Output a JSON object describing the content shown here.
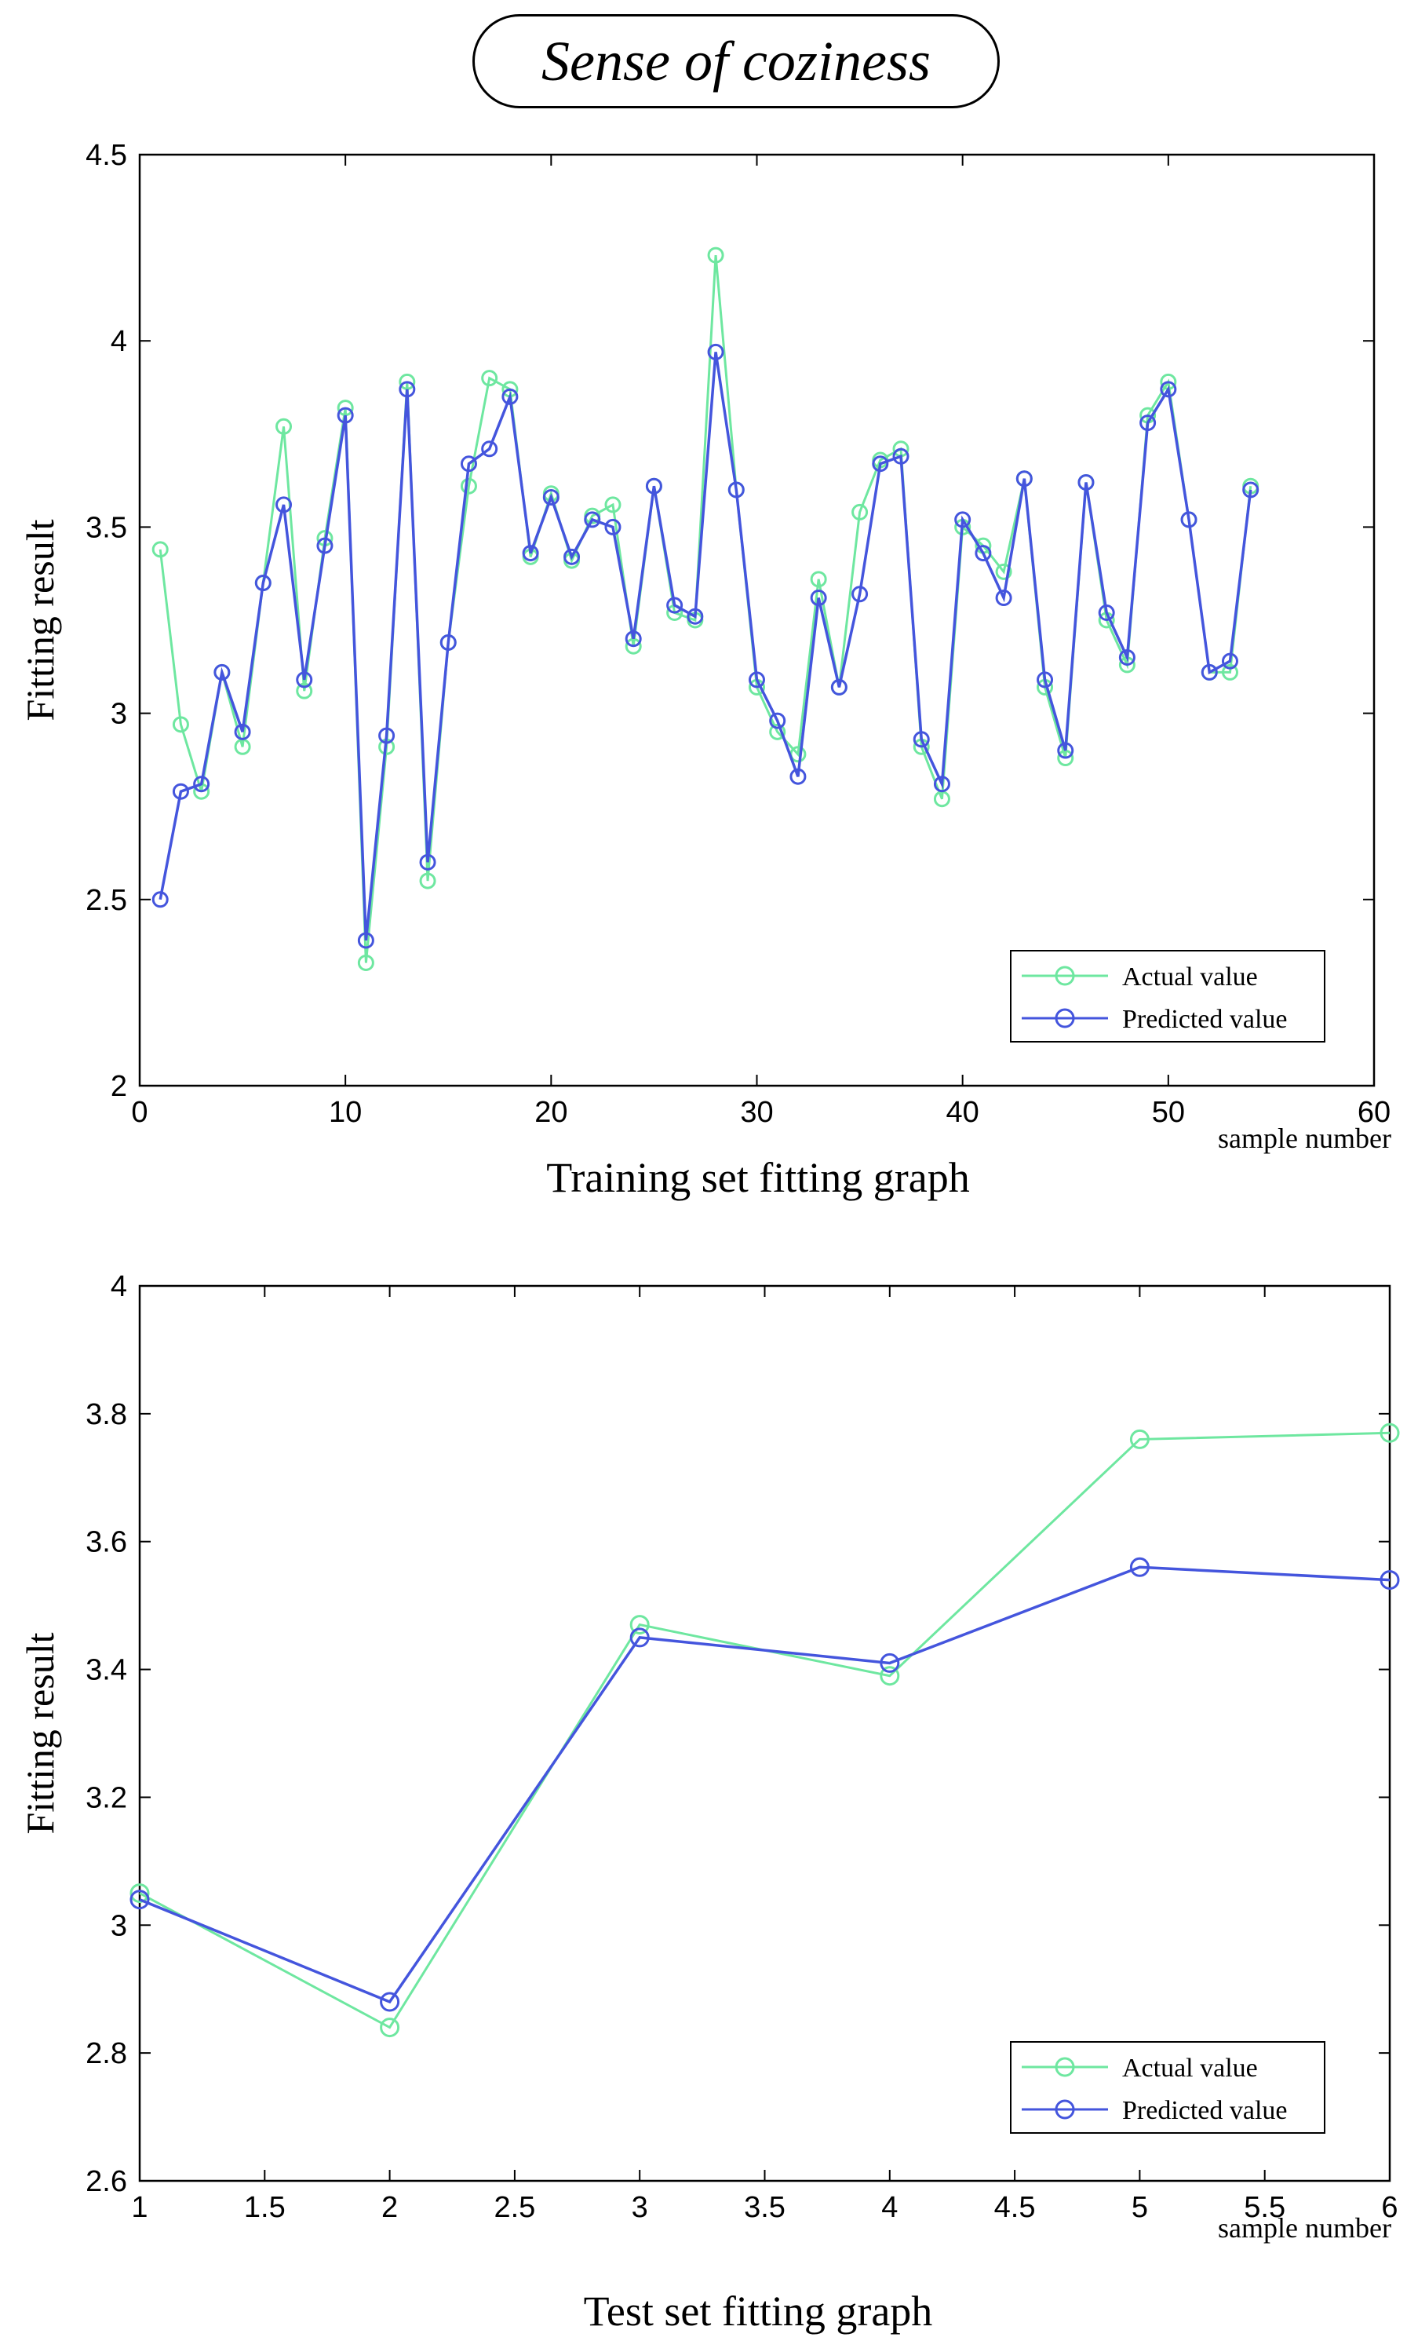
{
  "page_title": "Sense of coziness",
  "colors": {
    "actual": "#6ee7a0",
    "predicted": "#4455dd",
    "axis": "#000000"
  },
  "chart_data": [
    {
      "type": "line",
      "title": "Training set fitting graph",
      "xlabel": "sample number",
      "ylabel": "Fitting result",
      "xlim": [
        0,
        60
      ],
      "ylim": [
        2,
        4.5
      ],
      "xticks": [
        0,
        10,
        20,
        30,
        40,
        50,
        60
      ],
      "yticks": [
        2,
        2.5,
        3,
        3.5,
        4,
        4.5
      ],
      "xtick_labels": [
        "0",
        "10",
        "20",
        "30",
        "40",
        "50",
        "60"
      ],
      "ytick_labels": [
        "2",
        "2.5",
        "3",
        "3.5",
        "4",
        "4.5"
      ],
      "legend_position": "bottom-right",
      "x": [
        1,
        2,
        3,
        4,
        5,
        6,
        7,
        8,
        9,
        10,
        11,
        12,
        13,
        14,
        15,
        16,
        17,
        18,
        19,
        20,
        21,
        22,
        23,
        24,
        25,
        26,
        27,
        28,
        29,
        30,
        31,
        32,
        33,
        34,
        35,
        36,
        37,
        38,
        39,
        40,
        41,
        42,
        43,
        44,
        45,
        46,
        47,
        48,
        49,
        50,
        51,
        52,
        53,
        54
      ],
      "series": [
        {
          "name": "Actual value",
          "color": "#6ee7a0",
          "values": [
            3.44,
            2.97,
            2.79,
            3.11,
            2.91,
            3.35,
            3.77,
            3.06,
            3.47,
            3.82,
            2.33,
            2.91,
            3.89,
            2.55,
            3.19,
            3.61,
            3.9,
            3.87,
            3.42,
            3.59,
            3.41,
            3.53,
            3.56,
            3.18,
            3.61,
            3.27,
            3.25,
            4.23,
            3.6,
            3.07,
            2.95,
            2.89,
            3.36,
            3.07,
            3.54,
            3.68,
            3.71,
            2.91,
            2.77,
            3.5,
            3.45,
            3.38,
            3.63,
            3.07,
            2.88,
            3.62,
            3.25,
            3.13,
            3.8,
            3.89,
            3.52,
            3.11,
            3.11,
            3.61
          ]
        },
        {
          "name": "Predicted value",
          "color": "#4455dd",
          "values": [
            2.5,
            2.79,
            2.81,
            3.11,
            2.95,
            3.35,
            3.56,
            3.09,
            3.45,
            3.8,
            2.39,
            2.94,
            3.87,
            2.6,
            3.19,
            3.67,
            3.71,
            3.85,
            3.43,
            3.58,
            3.42,
            3.52,
            3.5,
            3.2,
            3.61,
            3.29,
            3.26,
            3.97,
            3.6,
            3.09,
            2.98,
            2.83,
            3.31,
            3.07,
            3.32,
            3.67,
            3.69,
            2.93,
            2.81,
            3.52,
            3.43,
            3.31,
            3.63,
            3.09,
            2.9,
            3.62,
            3.27,
            3.15,
            3.78,
            3.87,
            3.52,
            3.11,
            3.14,
            3.6
          ]
        }
      ]
    },
    {
      "type": "line",
      "title": "Test set fitting graph",
      "xlabel": "sample number",
      "ylabel": "Fitting result",
      "xlim": [
        1,
        6
      ],
      "ylim": [
        2.6,
        4
      ],
      "xticks": [
        1,
        1.5,
        2,
        2.5,
        3,
        3.5,
        4,
        4.5,
        5,
        5.5,
        6
      ],
      "yticks": [
        2.6,
        2.8,
        3,
        3.2,
        3.4,
        3.6,
        3.8,
        4
      ],
      "xtick_labels": [
        "1",
        "1.5",
        "2",
        "2.5",
        "3",
        "3.5",
        "4",
        "4.5",
        "5",
        "5.5",
        "6"
      ],
      "ytick_labels": [
        "2.6",
        "2.8",
        "3",
        "3.2",
        "3.4",
        "3.6",
        "3.8",
        "4"
      ],
      "legend_position": "bottom-right",
      "x": [
        1,
        2,
        3,
        4,
        5,
        6
      ],
      "series": [
        {
          "name": "Actual value",
          "color": "#6ee7a0",
          "values": [
            3.05,
            2.84,
            3.47,
            3.39,
            3.76,
            3.77
          ]
        },
        {
          "name": "Predicted value",
          "color": "#4455dd",
          "values": [
            3.04,
            2.88,
            3.45,
            3.41,
            3.56,
            3.54
          ]
        }
      ]
    }
  ]
}
